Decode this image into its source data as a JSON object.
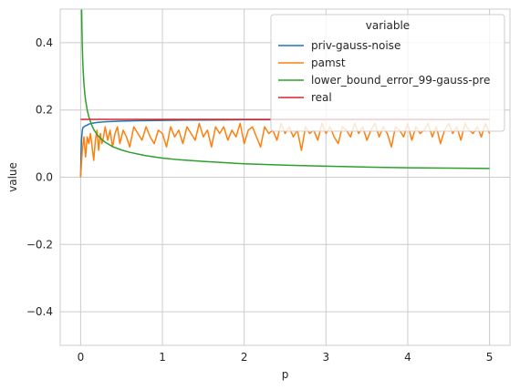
{
  "chart_data": {
    "type": "line",
    "title": "",
    "xlabel": "p",
    "ylabel": "value",
    "xlim": [
      -0.25,
      5.25
    ],
    "ylim": [
      -0.5,
      0.5
    ],
    "xticks": [
      0,
      1,
      2,
      3,
      4,
      5
    ],
    "yticks": [
      -0.4,
      -0.2,
      0.0,
      0.2,
      0.4
    ],
    "xtick_labels": [
      "0",
      "1",
      "2",
      "3",
      "4",
      "5"
    ],
    "ytick_labels": [
      "−0.4",
      "−0.2",
      "0.0",
      "0.2",
      "0.4"
    ],
    "grid": true,
    "legend": {
      "title": "variable",
      "position": "top-right"
    },
    "series": [
      {
        "name": "priv-gauss-noise",
        "color": "#1f77b4",
        "x": [
          0.0,
          0.005,
          0.01,
          0.02,
          0.03,
          0.05,
          0.08,
          0.1,
          0.15,
          0.2,
          0.3,
          0.4,
          0.5,
          0.7,
          1.0,
          1.3,
          1.5,
          2.0,
          3.0,
          4.0,
          5.0
        ],
        "y": [
          0.0,
          0.07,
          0.11,
          0.14,
          0.148,
          0.152,
          0.155,
          0.158,
          0.161,
          0.163,
          0.165,
          0.166,
          0.167,
          0.168,
          0.169,
          0.17,
          0.17,
          0.171,
          0.171,
          0.171,
          0.172
        ]
      },
      {
        "name": "pamst",
        "color": "#ff7f0e",
        "x": [
          0.0,
          0.02,
          0.04,
          0.06,
          0.08,
          0.1,
          0.12,
          0.14,
          0.16,
          0.18,
          0.2,
          0.22,
          0.24,
          0.26,
          0.28,
          0.3,
          0.33,
          0.36,
          0.39,
          0.42,
          0.45,
          0.48,
          0.52,
          0.56,
          0.6,
          0.65,
          0.7,
          0.75,
          0.8,
          0.85,
          0.9,
          0.95,
          1.0,
          1.05,
          1.1,
          1.15,
          1.2,
          1.25,
          1.3,
          1.35,
          1.4,
          1.45,
          1.5,
          1.55,
          1.6,
          1.65,
          1.7,
          1.75,
          1.8,
          1.85,
          1.9,
          1.95,
          2.0,
          2.05,
          2.1,
          2.15,
          2.2,
          2.25,
          2.3,
          2.35,
          2.4,
          2.45,
          2.5,
          2.55,
          2.6,
          2.65,
          2.7,
          2.75,
          2.8,
          2.85,
          2.9,
          2.95,
          3.0,
          3.05,
          3.1,
          3.15,
          3.2,
          3.25,
          3.3,
          3.35,
          3.4,
          3.45,
          3.5,
          3.55,
          3.6,
          3.65,
          3.7,
          3.75,
          3.8,
          3.85,
          3.9,
          3.95,
          4.0,
          4.05,
          4.1,
          4.15,
          4.2,
          4.25,
          4.3,
          4.35,
          4.4,
          4.45,
          4.5,
          4.55,
          4.6,
          4.65,
          4.7,
          4.75,
          4.8,
          4.85,
          4.9,
          4.95,
          5.0
        ],
        "y": [
          0.0,
          0.08,
          0.12,
          0.06,
          0.12,
          0.1,
          0.13,
          0.09,
          0.05,
          0.11,
          0.14,
          0.08,
          0.13,
          0.1,
          0.12,
          0.15,
          0.11,
          0.14,
          0.09,
          0.13,
          0.15,
          0.1,
          0.14,
          0.12,
          0.09,
          0.15,
          0.13,
          0.11,
          0.15,
          0.12,
          0.1,
          0.14,
          0.13,
          0.09,
          0.15,
          0.12,
          0.14,
          0.1,
          0.15,
          0.13,
          0.11,
          0.16,
          0.12,
          0.14,
          0.09,
          0.15,
          0.13,
          0.15,
          0.11,
          0.14,
          0.12,
          0.16,
          0.1,
          0.14,
          0.15,
          0.12,
          0.09,
          0.15,
          0.13,
          0.14,
          0.11,
          0.16,
          0.13,
          0.15,
          0.12,
          0.14,
          0.08,
          0.15,
          0.13,
          0.14,
          0.11,
          0.16,
          0.13,
          0.15,
          0.12,
          0.1,
          0.15,
          0.14,
          0.12,
          0.16,
          0.13,
          0.15,
          0.11,
          0.14,
          0.16,
          0.12,
          0.15,
          0.13,
          0.09,
          0.15,
          0.14,
          0.12,
          0.16,
          0.11,
          0.15,
          0.13,
          0.14,
          0.16,
          0.12,
          0.15,
          0.1,
          0.14,
          0.16,
          0.13,
          0.15,
          0.11,
          0.16,
          0.14,
          0.13,
          0.15,
          0.12,
          0.16,
          0.13
        ]
      },
      {
        "name": "lower_bound_error_99-gauss-pre",
        "color": "#2ca02c",
        "x": [
          0.012,
          0.015,
          0.02,
          0.025,
          0.03,
          0.04,
          0.05,
          0.06,
          0.08,
          0.1,
          0.13,
          0.16,
          0.2,
          0.25,
          0.3,
          0.4,
          0.5,
          0.6,
          0.8,
          1.0,
          1.2,
          1.5,
          2.0,
          2.5,
          3.0,
          3.5,
          4.0,
          4.5,
          5.0
        ],
        "y": [
          0.5,
          0.45,
          0.39,
          0.35,
          0.32,
          0.28,
          0.25,
          0.23,
          0.2,
          0.18,
          0.158,
          0.142,
          0.127,
          0.114,
          0.104,
          0.09,
          0.081,
          0.074,
          0.064,
          0.057,
          0.052,
          0.047,
          0.04,
          0.036,
          0.033,
          0.03,
          0.028,
          0.027,
          0.026
        ]
      },
      {
        "name": "real",
        "color": "#d62728",
        "x": [
          0.0,
          5.0
        ],
        "y": [
          0.172,
          0.172
        ]
      }
    ]
  }
}
